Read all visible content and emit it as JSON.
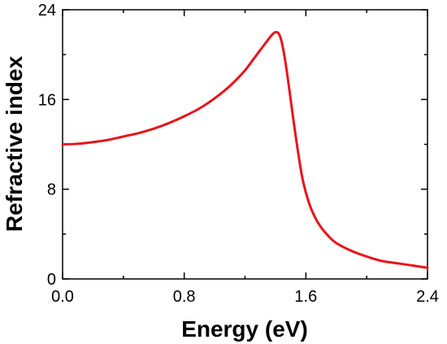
{
  "chart_data": {
    "type": "line",
    "title": "",
    "xlabel": "Energy (eV)",
    "ylabel": "Refractive index",
    "xlim": [
      0,
      2.4
    ],
    "ylim": [
      0,
      24
    ],
    "xticks": [
      0.0,
      0.8,
      1.6,
      2.4
    ],
    "xtick_labels": [
      "0.0",
      "0.8",
      "1.6",
      "2.4"
    ],
    "yticks": [
      0,
      8,
      16,
      24
    ],
    "ytick_labels": [
      "0",
      "8",
      "16",
      "24"
    ],
    "grid": false,
    "legend": "none",
    "series": [
      {
        "color": "#e8141c",
        "x": [
          0.0,
          0.1,
          0.2,
          0.3,
          0.4,
          0.5,
          0.6,
          0.7,
          0.8,
          0.9,
          1.0,
          1.1,
          1.2,
          1.25,
          1.3,
          1.35,
          1.38,
          1.4,
          1.42,
          1.44,
          1.46,
          1.48,
          1.5,
          1.52,
          1.55,
          1.58,
          1.62,
          1.66,
          1.7,
          1.75,
          1.8,
          1.9,
          2.0,
          2.1,
          2.2,
          2.3,
          2.4
        ],
        "y": [
          12.0,
          12.05,
          12.2,
          12.4,
          12.7,
          13.0,
          13.4,
          13.9,
          14.5,
          15.2,
          16.1,
          17.2,
          18.6,
          19.5,
          20.4,
          21.3,
          21.8,
          22.0,
          21.9,
          21.2,
          19.8,
          18.0,
          16.0,
          14.0,
          11.2,
          8.8,
          6.8,
          5.5,
          4.6,
          3.8,
          3.2,
          2.5,
          2.0,
          1.6,
          1.4,
          1.2,
          1.0
        ]
      }
    ]
  }
}
